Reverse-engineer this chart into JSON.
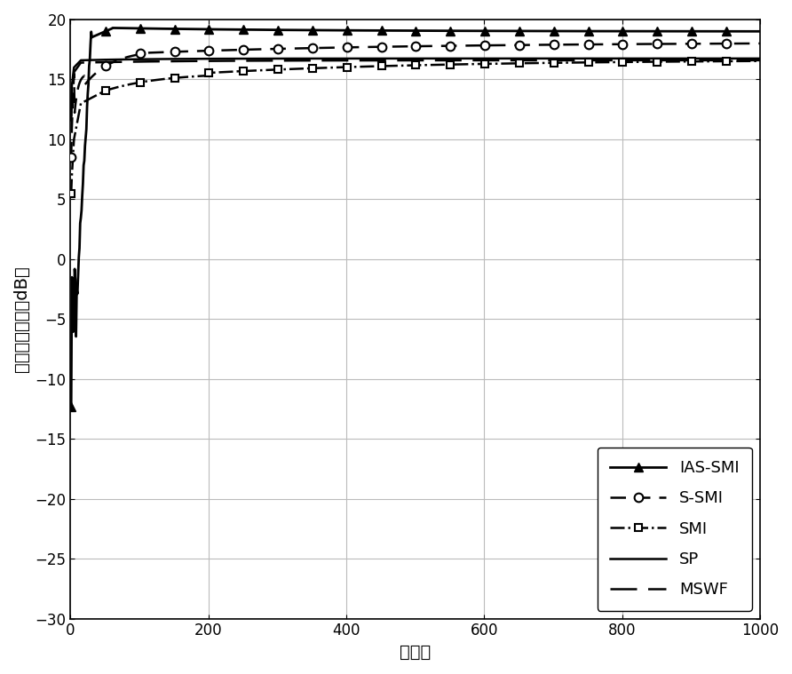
{
  "xlabel": "快拍数",
  "ylabel": "输出信干噪比（dB）",
  "xlim": [
    0,
    1000
  ],
  "ylim": [
    -30,
    20
  ],
  "yticks": [
    -30,
    -25,
    -20,
    -15,
    -10,
    -5,
    0,
    5,
    10,
    15,
    20
  ],
  "xticks": [
    0,
    200,
    400,
    600,
    800,
    1000
  ],
  "background_color": "#ffffff",
  "grid_color": "#bbbbbb",
  "legend_fontsize": 13,
  "axis_fontsize": 14,
  "tick_fontsize": 12
}
